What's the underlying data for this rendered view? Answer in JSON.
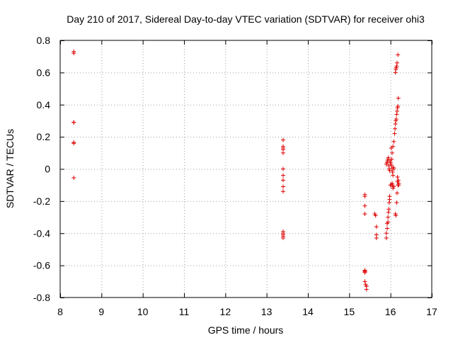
{
  "chart_data": {
    "type": "scatter",
    "title": "Day 210 of 2017, Sidereal Day-to-day VTEC variation (SDTVAR) for receiver ohi3",
    "xlabel": "GPS time / hours",
    "ylabel": "SDTVAR / TECUs",
    "xlim": [
      8,
      17
    ],
    "ylim": [
      -0.8,
      0.8
    ],
    "xticks": [
      "8",
      "9",
      "10",
      "11",
      "12",
      "13",
      "14",
      "15",
      "16",
      "17"
    ],
    "yticks": [
      "0.8",
      "0.6",
      "0.4",
      "0.2",
      "0",
      "-0.2",
      "-0.4",
      "-0.6",
      "-0.8"
    ],
    "xtick_values": [
      8,
      9,
      10,
      11,
      12,
      13,
      14,
      15,
      16,
      17
    ],
    "ytick_values": [
      0.8,
      0.6,
      0.4,
      0.2,
      0,
      -0.2,
      -0.4,
      -0.6,
      -0.8
    ],
    "grid": true,
    "marker": "+",
    "color": "#dd0000",
    "series": [
      {
        "name": "SDTVAR",
        "points": [
          [
            8.33,
            0.73
          ],
          [
            8.33,
            0.72
          ],
          [
            8.33,
            0.29
          ],
          [
            8.33,
            0.29
          ],
          [
            8.33,
            0.165
          ],
          [
            8.33,
            0.16
          ],
          [
            8.33,
            -0.055
          ],
          [
            13.4,
            0.18
          ],
          [
            13.4,
            0.14
          ],
          [
            13.4,
            0.13
          ],
          [
            13.4,
            0.12
          ],
          [
            13.4,
            0.1
          ],
          [
            13.4,
            0.0
          ],
          [
            13.4,
            -0.04
          ],
          [
            13.4,
            -0.07
          ],
          [
            13.4,
            -0.11
          ],
          [
            13.4,
            -0.14
          ],
          [
            13.4,
            -0.39
          ],
          [
            13.4,
            -0.4
          ],
          [
            13.4,
            -0.41
          ],
          [
            13.4,
            -0.42
          ],
          [
            13.4,
            -0.43
          ],
          [
            15.38,
            -0.17
          ],
          [
            15.38,
            -0.16
          ],
          [
            15.38,
            -0.23
          ],
          [
            15.38,
            -0.28
          ],
          [
            15.38,
            -0.63
          ],
          [
            15.38,
            -0.635
          ],
          [
            15.38,
            -0.64
          ],
          [
            15.38,
            -0.645
          ],
          [
            15.38,
            -0.7
          ],
          [
            15.4,
            -0.72
          ],
          [
            15.42,
            -0.73
          ],
          [
            15.42,
            -0.75
          ],
          [
            15.62,
            -0.28
          ],
          [
            15.64,
            -0.29
          ],
          [
            15.66,
            -0.36
          ],
          [
            15.66,
            -0.41
          ],
          [
            15.66,
            -0.43
          ],
          [
            15.9,
            -0.43
          ],
          [
            15.9,
            -0.4
          ],
          [
            15.92,
            -0.37
          ],
          [
            15.92,
            -0.34
          ],
          [
            15.94,
            -0.33
          ],
          [
            15.94,
            -0.3
          ],
          [
            15.95,
            -0.27
          ],
          [
            15.96,
            -0.25
          ],
          [
            15.97,
            -0.21
          ],
          [
            15.98,
            -0.19
          ],
          [
            15.98,
            -0.17
          ],
          [
            15.9,
            0.03
          ],
          [
            15.92,
            0.04
          ],
          [
            15.93,
            0.05
          ],
          [
            15.94,
            0.06
          ],
          [
            15.95,
            0.07
          ],
          [
            15.96,
            0.02
          ],
          [
            15.97,
            0.0
          ],
          [
            15.98,
            -0.01
          ],
          [
            15.99,
            0.05
          ],
          [
            16.0,
            0.04
          ],
          [
            16.01,
            0.03
          ],
          [
            16.02,
            0.02
          ],
          [
            16.03,
            0.06
          ],
          [
            16.04,
            0.0
          ],
          [
            16.05,
            -0.02
          ],
          [
            16.06,
            -0.04
          ],
          [
            16.07,
            0.01
          ],
          [
            16.08,
            0.0
          ],
          [
            16.0,
            -0.1
          ],
          [
            16.02,
            -0.1
          ],
          [
            16.04,
            -0.09
          ],
          [
            16.05,
            -0.1
          ],
          [
            16.06,
            -0.12
          ],
          [
            16.08,
            -0.11
          ],
          [
            16.02,
            0.13
          ],
          [
            16.04,
            0.1
          ],
          [
            16.06,
            0.14
          ],
          [
            16.08,
            0.17
          ],
          [
            16.1,
            0.22
          ],
          [
            16.11,
            0.25
          ],
          [
            16.12,
            0.28
          ],
          [
            16.13,
            0.3
          ],
          [
            16.14,
            0.31
          ],
          [
            16.15,
            0.34
          ],
          [
            16.16,
            0.36
          ],
          [
            16.17,
            0.38
          ],
          [
            16.18,
            0.39
          ],
          [
            16.19,
            0.44
          ],
          [
            16.12,
            0.6
          ],
          [
            16.13,
            0.62
          ],
          [
            16.14,
            0.63
          ],
          [
            16.15,
            0.64
          ],
          [
            16.16,
            0.66
          ],
          [
            16.18,
            0.71
          ],
          [
            16.12,
            -0.28
          ],
          [
            16.13,
            -0.29
          ],
          [
            16.15,
            -0.21
          ],
          [
            16.16,
            -0.15
          ],
          [
            16.17,
            -0.05
          ],
          [
            16.17,
            -0.08
          ],
          [
            16.18,
            -0.1
          ],
          [
            16.19,
            -0.07
          ],
          [
            16.2,
            -0.09
          ],
          [
            16.2,
            -0.1
          ]
        ]
      }
    ]
  }
}
